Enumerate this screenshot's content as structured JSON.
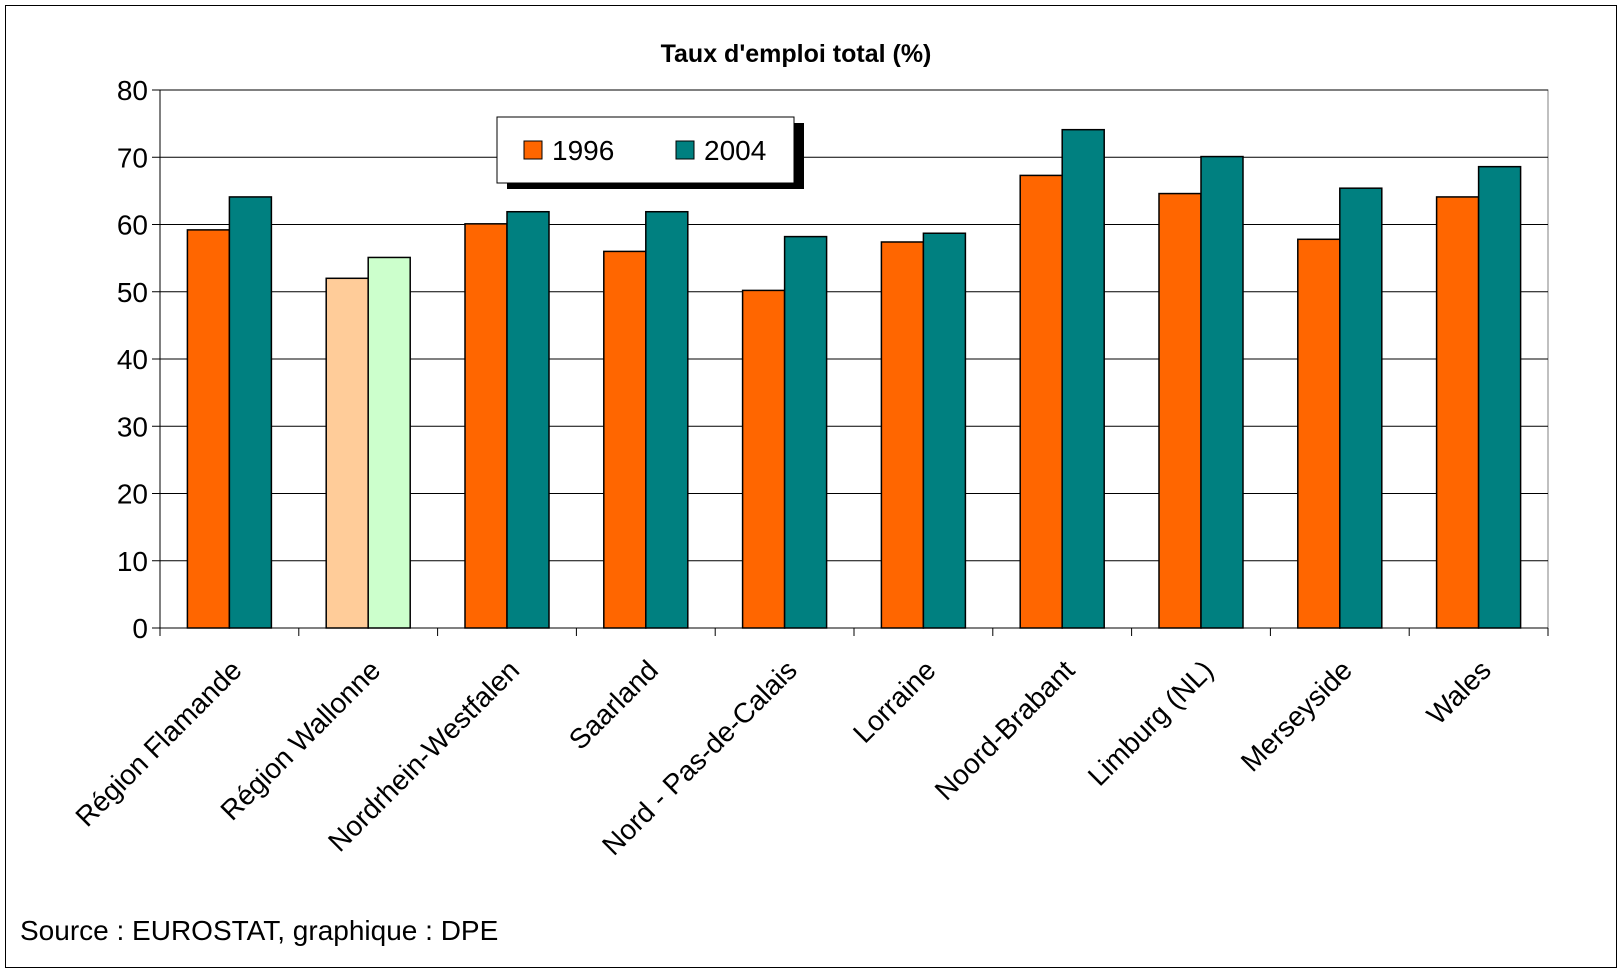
{
  "chart_data": {
    "type": "bar",
    "title": "Taux d'emploi total (%)",
    "categories": [
      "Région Flamande",
      "Région Wallonne",
      "Nordrhein-Westfalen",
      "Saarland",
      "Nord - Pas-de-Calais",
      "Lorraine",
      "Noord-Brabant",
      "Limburg (NL)",
      "Merseyside",
      "Wales"
    ],
    "series": [
      {
        "name": "1996",
        "color": "#FF6600",
        "values": [
          59.2,
          52.0,
          60.1,
          56.0,
          50.2,
          57.4,
          67.3,
          64.6,
          57.8,
          64.1
        ]
      },
      {
        "name": "2004",
        "color": "#008080",
        "values": [
          64.1,
          55.1,
          61.9,
          61.9,
          58.2,
          58.7,
          74.1,
          70.1,
          65.4,
          68.6
        ]
      }
    ],
    "highlight": {
      "category_index": 1,
      "colors": [
        "#FFCC99",
        "#CCFFCC"
      ]
    },
    "ylim": [
      0,
      80
    ],
    "yticks": [
      "0",
      "10",
      "20",
      "30",
      "40",
      "50",
      "60",
      "70",
      "80"
    ],
    "grid": true,
    "legend": "top-center"
  },
  "source_text": "Source : EUROSTAT, graphique : DPE"
}
